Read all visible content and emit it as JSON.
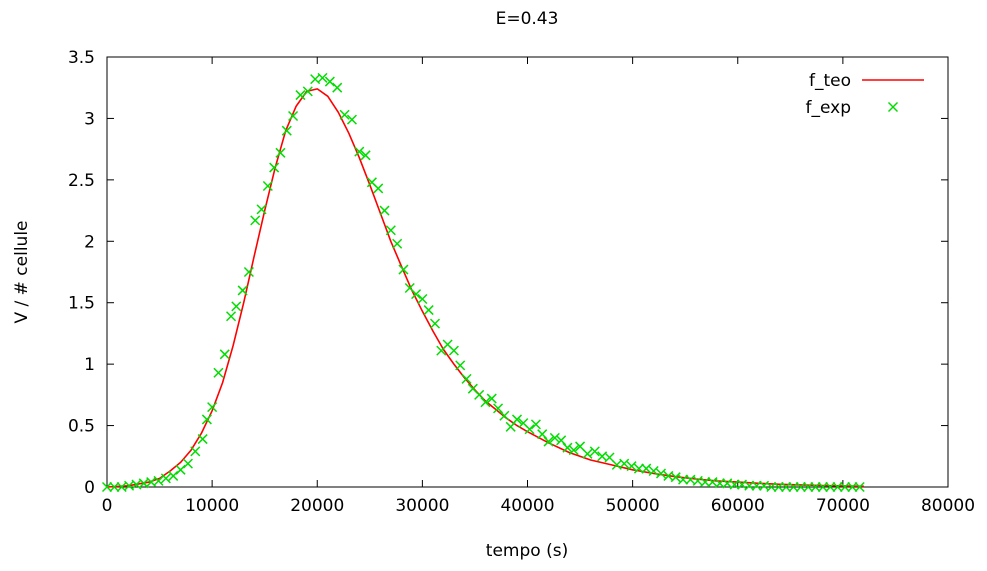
{
  "chart_data": {
    "type": "line",
    "title": "E=0.43",
    "xlabel": "tempo (s)",
    "ylabel": "V / # cellule",
    "xlim": [
      0,
      80000
    ],
    "ylim": [
      0,
      3.5
    ],
    "xticks": [
      0,
      10000,
      20000,
      30000,
      40000,
      50000,
      60000,
      70000,
      80000
    ],
    "yticks": [
      0,
      0.5,
      1,
      1.5,
      2,
      2.5,
      3,
      3.5
    ],
    "xtick_labels": [
      "0",
      "10000",
      "20000",
      "30000",
      "40000",
      "50000",
      "60000",
      "70000",
      "80000"
    ],
    "ytick_labels": [
      "0",
      "0.5",
      "1",
      "1.5",
      "2",
      "2.5",
      "3",
      "3.5"
    ],
    "grid": false,
    "legend_position": "top-right",
    "series": [
      {
        "name": "f_teo",
        "kind": "line",
        "color": "#ff0000",
        "x": [
          0,
          2000,
          4000,
          5000,
          6000,
          7000,
          8000,
          9000,
          10000,
          11000,
          12000,
          13000,
          14000,
          15000,
          16000,
          17000,
          18000,
          19000,
          20000,
          21000,
          22000,
          23000,
          24000,
          25000,
          26000,
          27000,
          28000,
          29000,
          30000,
          31000,
          32000,
          33000,
          34000,
          35000,
          36000,
          37000,
          38000,
          39000,
          40000,
          42000,
          44000,
          46000,
          48000,
          50000,
          52000,
          54000,
          56000,
          58000,
          60000,
          62000,
          64000,
          66000,
          68000,
          70000,
          72000
        ],
        "y": [
          0.0,
          0.01,
          0.04,
          0.07,
          0.13,
          0.2,
          0.3,
          0.44,
          0.62,
          0.85,
          1.15,
          1.5,
          1.88,
          2.25,
          2.6,
          2.9,
          3.1,
          3.22,
          3.24,
          3.18,
          3.05,
          2.88,
          2.68,
          2.46,
          2.23,
          2.0,
          1.8,
          1.6,
          1.43,
          1.27,
          1.12,
          1.0,
          0.89,
          0.79,
          0.7,
          0.63,
          0.56,
          0.5,
          0.45,
          0.36,
          0.28,
          0.22,
          0.18,
          0.14,
          0.11,
          0.085,
          0.065,
          0.05,
          0.04,
          0.03,
          0.022,
          0.017,
          0.012,
          0.009,
          0.006
        ]
      },
      {
        "name": "f_exp",
        "kind": "points",
        "marker": "x",
        "color": "#00dd00",
        "x": [
          0,
          700,
          1400,
          2100,
          2800,
          3500,
          4200,
          4900,
          5600,
          6300,
          7000,
          7700,
          8400,
          9100,
          9500,
          10000,
          10600,
          11200,
          11800,
          12300,
          12900,
          13500,
          14100,
          14700,
          15300,
          15900,
          16500,
          17100,
          17700,
          18400,
          19100,
          19800,
          20500,
          21200,
          21900,
          22600,
          23300,
          24000,
          24600,
          25200,
          25800,
          26400,
          27000,
          27600,
          28200,
          28800,
          29400,
          30000,
          30600,
          31200,
          31800,
          32400,
          33000,
          33600,
          34200,
          34800,
          35400,
          36000,
          36600,
          37200,
          37800,
          38400,
          39000,
          39600,
          40200,
          40800,
          41400,
          42000,
          42600,
          43200,
          43800,
          44400,
          45000,
          45700,
          46400,
          47100,
          47800,
          48500,
          49200,
          49900,
          50600,
          51300,
          52000,
          52700,
          53400,
          54100,
          54800,
          55500,
          56200,
          56900,
          57600,
          58300,
          59000,
          59700,
          60400,
          61100,
          61800,
          62500,
          63200,
          63900,
          64600,
          65300,
          66000,
          66700,
          67400,
          68100,
          68800,
          69500,
          70200,
          70900,
          71600
        ],
        "y": [
          0.0,
          0.0,
          0.0,
          0.01,
          0.02,
          0.03,
          0.04,
          0.05,
          0.07,
          0.09,
          0.14,
          0.19,
          0.29,
          0.39,
          0.55,
          0.65,
          0.93,
          1.08,
          1.39,
          1.47,
          1.6,
          1.75,
          2.17,
          2.26,
          2.45,
          2.6,
          2.72,
          2.9,
          3.02,
          3.19,
          3.22,
          3.32,
          3.33,
          3.3,
          3.25,
          3.03,
          2.99,
          2.73,
          2.7,
          2.48,
          2.43,
          2.25,
          2.09,
          1.98,
          1.77,
          1.62,
          1.57,
          1.53,
          1.44,
          1.33,
          1.11,
          1.16,
          1.11,
          0.99,
          0.88,
          0.8,
          0.75,
          0.69,
          0.72,
          0.64,
          0.58,
          0.49,
          0.55,
          0.52,
          0.47,
          0.51,
          0.43,
          0.37,
          0.4,
          0.38,
          0.32,
          0.3,
          0.33,
          0.27,
          0.29,
          0.25,
          0.24,
          0.18,
          0.19,
          0.17,
          0.15,
          0.15,
          0.13,
          0.11,
          0.09,
          0.08,
          0.06,
          0.06,
          0.05,
          0.04,
          0.04,
          0.03,
          0.03,
          0.02,
          0.02,
          0.01,
          0.01,
          0.01,
          0.0,
          0.0,
          0.0,
          0.0,
          0.0,
          0.0,
          0.0,
          0.0,
          0.0,
          0.0,
          0.0,
          0.0,
          0.0
        ]
      }
    ]
  }
}
